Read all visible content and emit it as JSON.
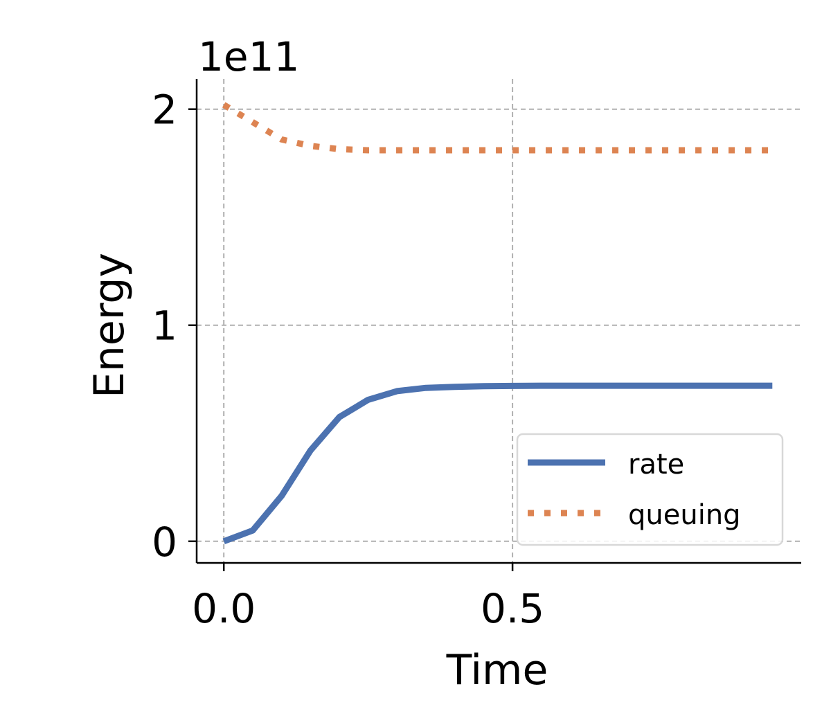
{
  "chart_data": {
    "type": "line",
    "xlabel": "Time",
    "ylabel": "Energy",
    "y_offset_label": "1e11",
    "xlim": [
      -0.047,
      1.0
    ],
    "ylim": [
      -0.1,
      2.14
    ],
    "x_ticks": [
      0.0,
      0.5
    ],
    "x_tick_labels": [
      "0.0",
      "0.5"
    ],
    "y_ticks": [
      0,
      1,
      2
    ],
    "y_tick_labels": [
      "0",
      "1",
      "2"
    ],
    "grid": true,
    "legend_position": "lower-right",
    "series": [
      {
        "name": "rate",
        "style": "solid",
        "color": "#4c72b0",
        "x": [
          0.0,
          0.05,
          0.1,
          0.15,
          0.2,
          0.25,
          0.3,
          0.35,
          0.4,
          0.45,
          0.5,
          0.55,
          0.6,
          0.65,
          0.7,
          0.75,
          0.8,
          0.85,
          0.9,
          0.95
        ],
        "y": [
          0.0,
          0.05,
          0.21,
          0.42,
          0.575,
          0.655,
          0.695,
          0.71,
          0.715,
          0.718,
          0.719,
          0.72,
          0.72,
          0.72,
          0.72,
          0.72,
          0.72,
          0.72,
          0.72,
          0.72
        ]
      },
      {
        "name": "queuing",
        "style": "dotted",
        "color": "#dd8452",
        "x": [
          0.0,
          0.05,
          0.1,
          0.15,
          0.2,
          0.25,
          0.3,
          0.35,
          0.4,
          0.45,
          0.5,
          0.55,
          0.6,
          0.65,
          0.7,
          0.75,
          0.8,
          0.85,
          0.9,
          0.95
        ],
        "y": [
          2.02,
          1.94,
          1.86,
          1.83,
          1.815,
          1.81,
          1.81,
          1.81,
          1.81,
          1.81,
          1.81,
          1.81,
          1.81,
          1.81,
          1.81,
          1.81,
          1.81,
          1.81,
          1.81,
          1.81
        ]
      }
    ]
  }
}
